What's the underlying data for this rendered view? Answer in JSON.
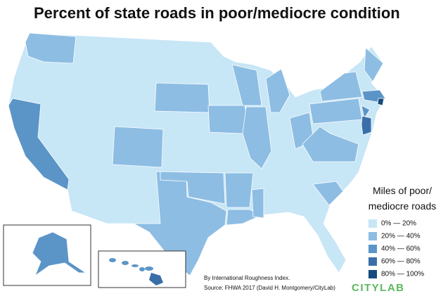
{
  "title": "Percent of state roads in poor/mediocre condition",
  "legend": {
    "title_lines": [
      "Miles of poor/",
      "mediocre roads"
    ],
    "items": [
      {
        "label": "0% — 20%",
        "color": "#c7e6f6"
      },
      {
        "label": "20% — 40%",
        "color": "#8dbde3"
      },
      {
        "label": "40% — 60%",
        "color": "#5b95c7"
      },
      {
        "label": "60% — 80%",
        "color": "#3a6ea9"
      },
      {
        "label": "80% — 100%",
        "color": "#174a7e"
      }
    ]
  },
  "notes": [
    "By International Roughness Index.",
    "Source: FHWA 2017 (David H. Montgomery/CityLab)"
  ],
  "logo": "CITYLAB"
}
